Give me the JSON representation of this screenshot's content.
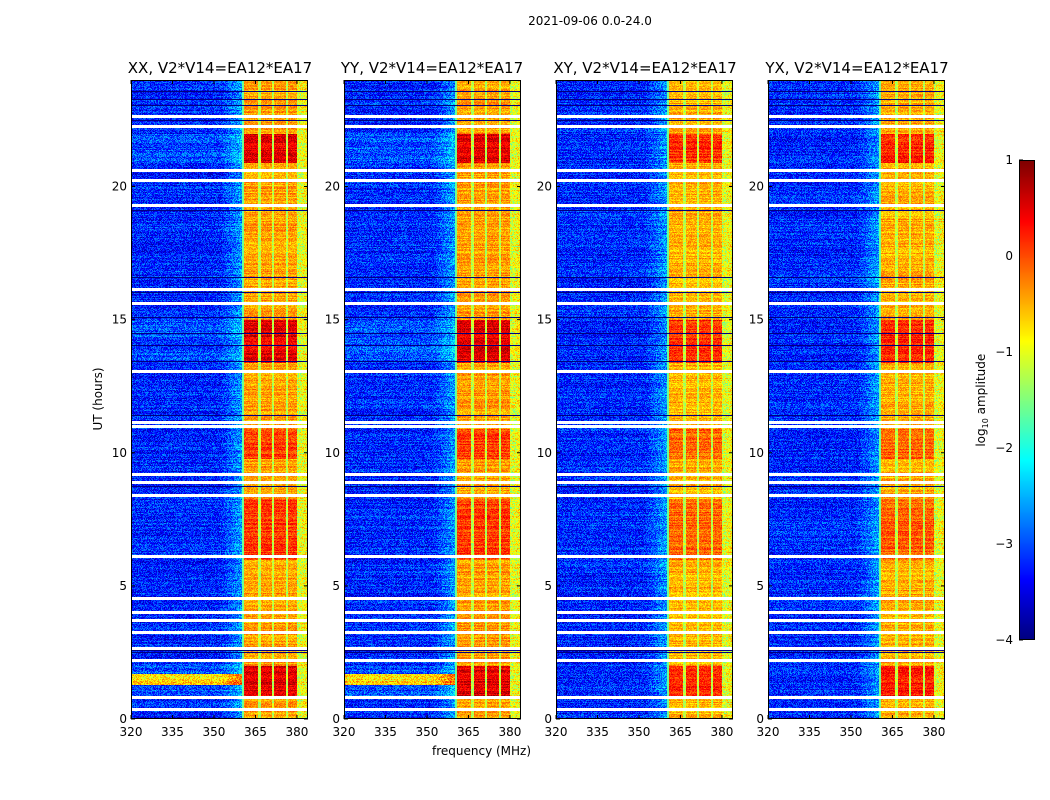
{
  "chart_data": {
    "type": "heatmap",
    "title": "2021-09-06 0.0-24.0",
    "xlabel": "frequency (MHz)",
    "ylabel": "UT (hours)",
    "xlim": [
      320,
      384
    ],
    "ylim": [
      0,
      24
    ],
    "xticks": [
      320,
      335,
      350,
      365,
      380
    ],
    "yticks": [
      0,
      5,
      10,
      15,
      20
    ],
    "panels": [
      {
        "title": "XX, V2*V14=EA12*EA17",
        "band_strength": 1.0
      },
      {
        "title": "YY, V2*V14=EA12*EA17",
        "band_strength": 1.0
      },
      {
        "title": "XY, V2*V14=EA12*EA17",
        "band_strength": 0.75
      },
      {
        "title": "YX, V2*V14=EA12*EA17",
        "band_strength": 0.8
      }
    ],
    "background_log_amplitude": -3.2,
    "rfi_band_mhz": [
      360,
      380
    ],
    "rfi_log_amplitude": -0.4,
    "rfi_channel_gaps_mhz": [
      366.2,
      371.2,
      376.2,
      380.2
    ],
    "strong_rfi_hours": [
      [
        0.8,
        2.0
      ],
      [
        13.4,
        15.0
      ],
      [
        20.9,
        22.0
      ],
      [
        9.8,
        10.9
      ],
      [
        6.0,
        8.3
      ]
    ],
    "flagged_rows_hours": [
      0.4,
      0.85,
      2.25,
      2.7,
      3.3,
      3.75,
      4.05,
      4.6,
      6.15,
      8.45,
      8.95,
      9.25,
      11.05,
      11.2,
      13.1,
      15.65,
      16.2,
      19.35,
      20.3,
      20.65,
      22.3,
      22.7
    ],
    "dark_rows_hours": [
      2.5,
      2.6,
      8.75,
      11.4,
      13.45,
      14.05,
      14.5,
      15.1,
      16.05,
      16.6,
      19.1,
      22.5,
      23.05,
      23.3,
      23.6
    ],
    "colorbar": {
      "label": "log",
      "label_sub": "10",
      "label_suffix": " amplitude",
      "range": [
        -4,
        1
      ],
      "ticks": [
        "1",
        "0",
        "−1",
        "−2",
        "−3",
        "−4"
      ],
      "colormap": "jet"
    }
  }
}
